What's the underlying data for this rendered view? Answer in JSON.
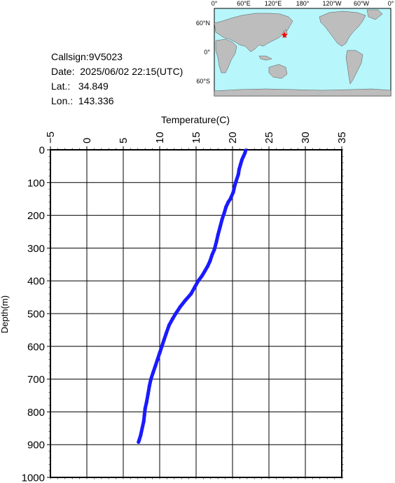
{
  "station": {
    "callsign_label": "Callsign:",
    "callsign": "9V5023",
    "date_label": "Date:",
    "date": "2025/06/02 22:15(UTC)",
    "lat_label": "Lat.:",
    "lat": "34.849",
    "lon_label": "Lon.:",
    "lon": "143.336"
  },
  "map": {
    "lon_ticks": [
      "0°",
      "60°E",
      "120°E",
      "180°",
      "120°W",
      "60°W",
      "0°"
    ],
    "lat_ticks": [
      "60°N",
      "0°",
      "60°S"
    ],
    "ocean_color": "#b7f6fb",
    "land_color": "#bdbdbd",
    "marker_color": "#ff0000",
    "marker": {
      "lon": 143.336,
      "lat": 34.849
    }
  },
  "chart_data": {
    "type": "line",
    "xlabel": "Temperature(C)",
    "ylabel": "Depth(m)",
    "xlim": [
      -5,
      35
    ],
    "ylim": [
      1000,
      0
    ],
    "x_ticks": [
      "-5",
      "0",
      "5",
      "10",
      "15",
      "20",
      "25",
      "30",
      "35"
    ],
    "y_ticks": [
      "0",
      "100",
      "200",
      "300",
      "400",
      "500",
      "600",
      "700",
      "800",
      "900",
      "1000"
    ],
    "grid": true,
    "series": [
      {
        "color": "#1a1aff",
        "points": [
          [
            21.8,
            2
          ],
          [
            21.7,
            10
          ],
          [
            21.5,
            20
          ],
          [
            21.3,
            30
          ],
          [
            21.1,
            45
          ],
          [
            20.9,
            60
          ],
          [
            20.8,
            75
          ],
          [
            20.5,
            95
          ],
          [
            20.3,
            110
          ],
          [
            20.1,
            130
          ],
          [
            19.7,
            150
          ],
          [
            19.4,
            160
          ],
          [
            19.1,
            175
          ],
          [
            18.9,
            190
          ],
          [
            18.6,
            210
          ],
          [
            18.3,
            235
          ],
          [
            18.0,
            260
          ],
          [
            17.8,
            280
          ],
          [
            17.5,
            305
          ],
          [
            17.2,
            320
          ],
          [
            16.9,
            340
          ],
          [
            16.6,
            355
          ],
          [
            16.2,
            370
          ],
          [
            15.8,
            385
          ],
          [
            15.3,
            400
          ],
          [
            14.8,
            420
          ],
          [
            14.3,
            440
          ],
          [
            13.5,
            460
          ],
          [
            12.8,
            480
          ],
          [
            12.2,
            500
          ],
          [
            11.8,
            515
          ],
          [
            11.3,
            535
          ],
          [
            10.9,
            560
          ],
          [
            10.6,
            580
          ],
          [
            10.3,
            600
          ],
          [
            10.0,
            620
          ],
          [
            9.7,
            640
          ],
          [
            9.4,
            660
          ],
          [
            9.1,
            680
          ],
          [
            8.8,
            700
          ],
          [
            8.6,
            720
          ],
          [
            8.4,
            745
          ],
          [
            8.2,
            770
          ],
          [
            8.0,
            790
          ],
          [
            7.9,
            810
          ],
          [
            7.8,
            830
          ],
          [
            7.6,
            850
          ],
          [
            7.4,
            870
          ],
          [
            7.2,
            885
          ],
          [
            7.1,
            892
          ]
        ]
      }
    ]
  }
}
